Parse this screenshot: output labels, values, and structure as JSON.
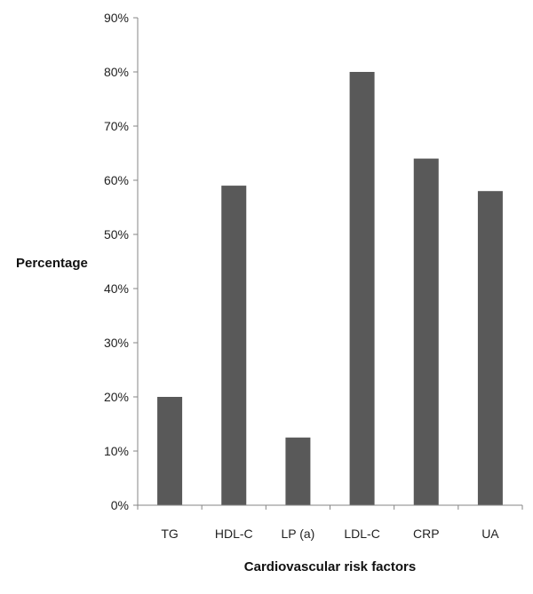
{
  "chart_data": {
    "type": "bar",
    "title": "",
    "xlabel": "Cardiovascular risk factors",
    "ylabel": "Percentage",
    "categories": [
      "TG",
      "HDL-C",
      "LP (a)",
      "LDL-C",
      "CRP",
      "UA"
    ],
    "values": [
      20,
      59,
      12.5,
      80,
      64,
      58
    ],
    "ylim": [
      0,
      90
    ],
    "y_ticks": [
      0,
      10,
      20,
      30,
      40,
      50,
      60,
      70,
      80,
      90
    ],
    "y_tick_labels": [
      "0%",
      "10%",
      "20%",
      "30%",
      "40%",
      "50%",
      "60%",
      "70%",
      "80%",
      "90%"
    ],
    "grid": false,
    "legend": "none",
    "bar_color": "#595959",
    "axis_color": "#868686"
  }
}
